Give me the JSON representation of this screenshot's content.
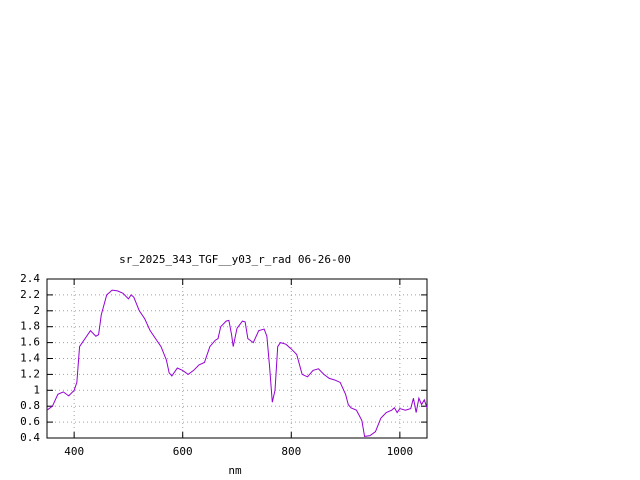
{
  "chart_data": {
    "type": "line",
    "title": "sr_2025_343_TGF__y03_r_rad 06-26-00",
    "x_label": "nm",
    "x": [
      350,
      360,
      370,
      380,
      390,
      400,
      405,
      410,
      420,
      430,
      440,
      445,
      450,
      460,
      470,
      480,
      490,
      500,
      505,
      510,
      520,
      530,
      540,
      550,
      560,
      570,
      575,
      580,
      590,
      600,
      610,
      620,
      630,
      640,
      650,
      660,
      665,
      670,
      680,
      685,
      690,
      693,
      700,
      710,
      715,
      720,
      730,
      740,
      750,
      755,
      760,
      765,
      770,
      775,
      780,
      790,
      800,
      810,
      820,
      830,
      840,
      850,
      860,
      870,
      880,
      890,
      900,
      905,
      910,
      920,
      930,
      935,
      945,
      955,
      965,
      975,
      985,
      990,
      995,
      1000,
      1010,
      1020,
      1025,
      1030,
      1035,
      1040,
      1045,
      1050
    ],
    "values": [
      0.75,
      0.8,
      0.95,
      0.98,
      0.93,
      1.0,
      1.1,
      1.55,
      1.65,
      1.75,
      1.68,
      1.7,
      1.95,
      2.2,
      2.26,
      2.25,
      2.22,
      2.15,
      2.2,
      2.17,
      2.0,
      1.9,
      1.75,
      1.65,
      1.55,
      1.38,
      1.22,
      1.18,
      1.28,
      1.25,
      1.2,
      1.25,
      1.32,
      1.35,
      1.55,
      1.63,
      1.65,
      1.8,
      1.87,
      1.88,
      1.7,
      1.55,
      1.78,
      1.87,
      1.86,
      1.65,
      1.6,
      1.75,
      1.77,
      1.68,
      1.3,
      0.85,
      1.0,
      1.55,
      1.6,
      1.58,
      1.52,
      1.45,
      1.2,
      1.17,
      1.25,
      1.27,
      1.2,
      1.15,
      1.13,
      1.1,
      0.95,
      0.82,
      0.78,
      0.75,
      0.62,
      0.42,
      0.43,
      0.48,
      0.65,
      0.72,
      0.75,
      0.78,
      0.72,
      0.77,
      0.75,
      0.77,
      0.9,
      0.72,
      0.9,
      0.82,
      0.88,
      0.78
    ],
    "color": "#9400d3",
    "xlim": [
      350,
      1050
    ],
    "xticks": [
      400,
      600,
      800,
      1000
    ],
    "ylim": [
      0.4,
      2.4
    ],
    "yticks": [
      0.4,
      0.6,
      0.8,
      1,
      1.2,
      1.4,
      1.6,
      1.8,
      2,
      2.2,
      2.4
    ],
    "grid": true
  }
}
